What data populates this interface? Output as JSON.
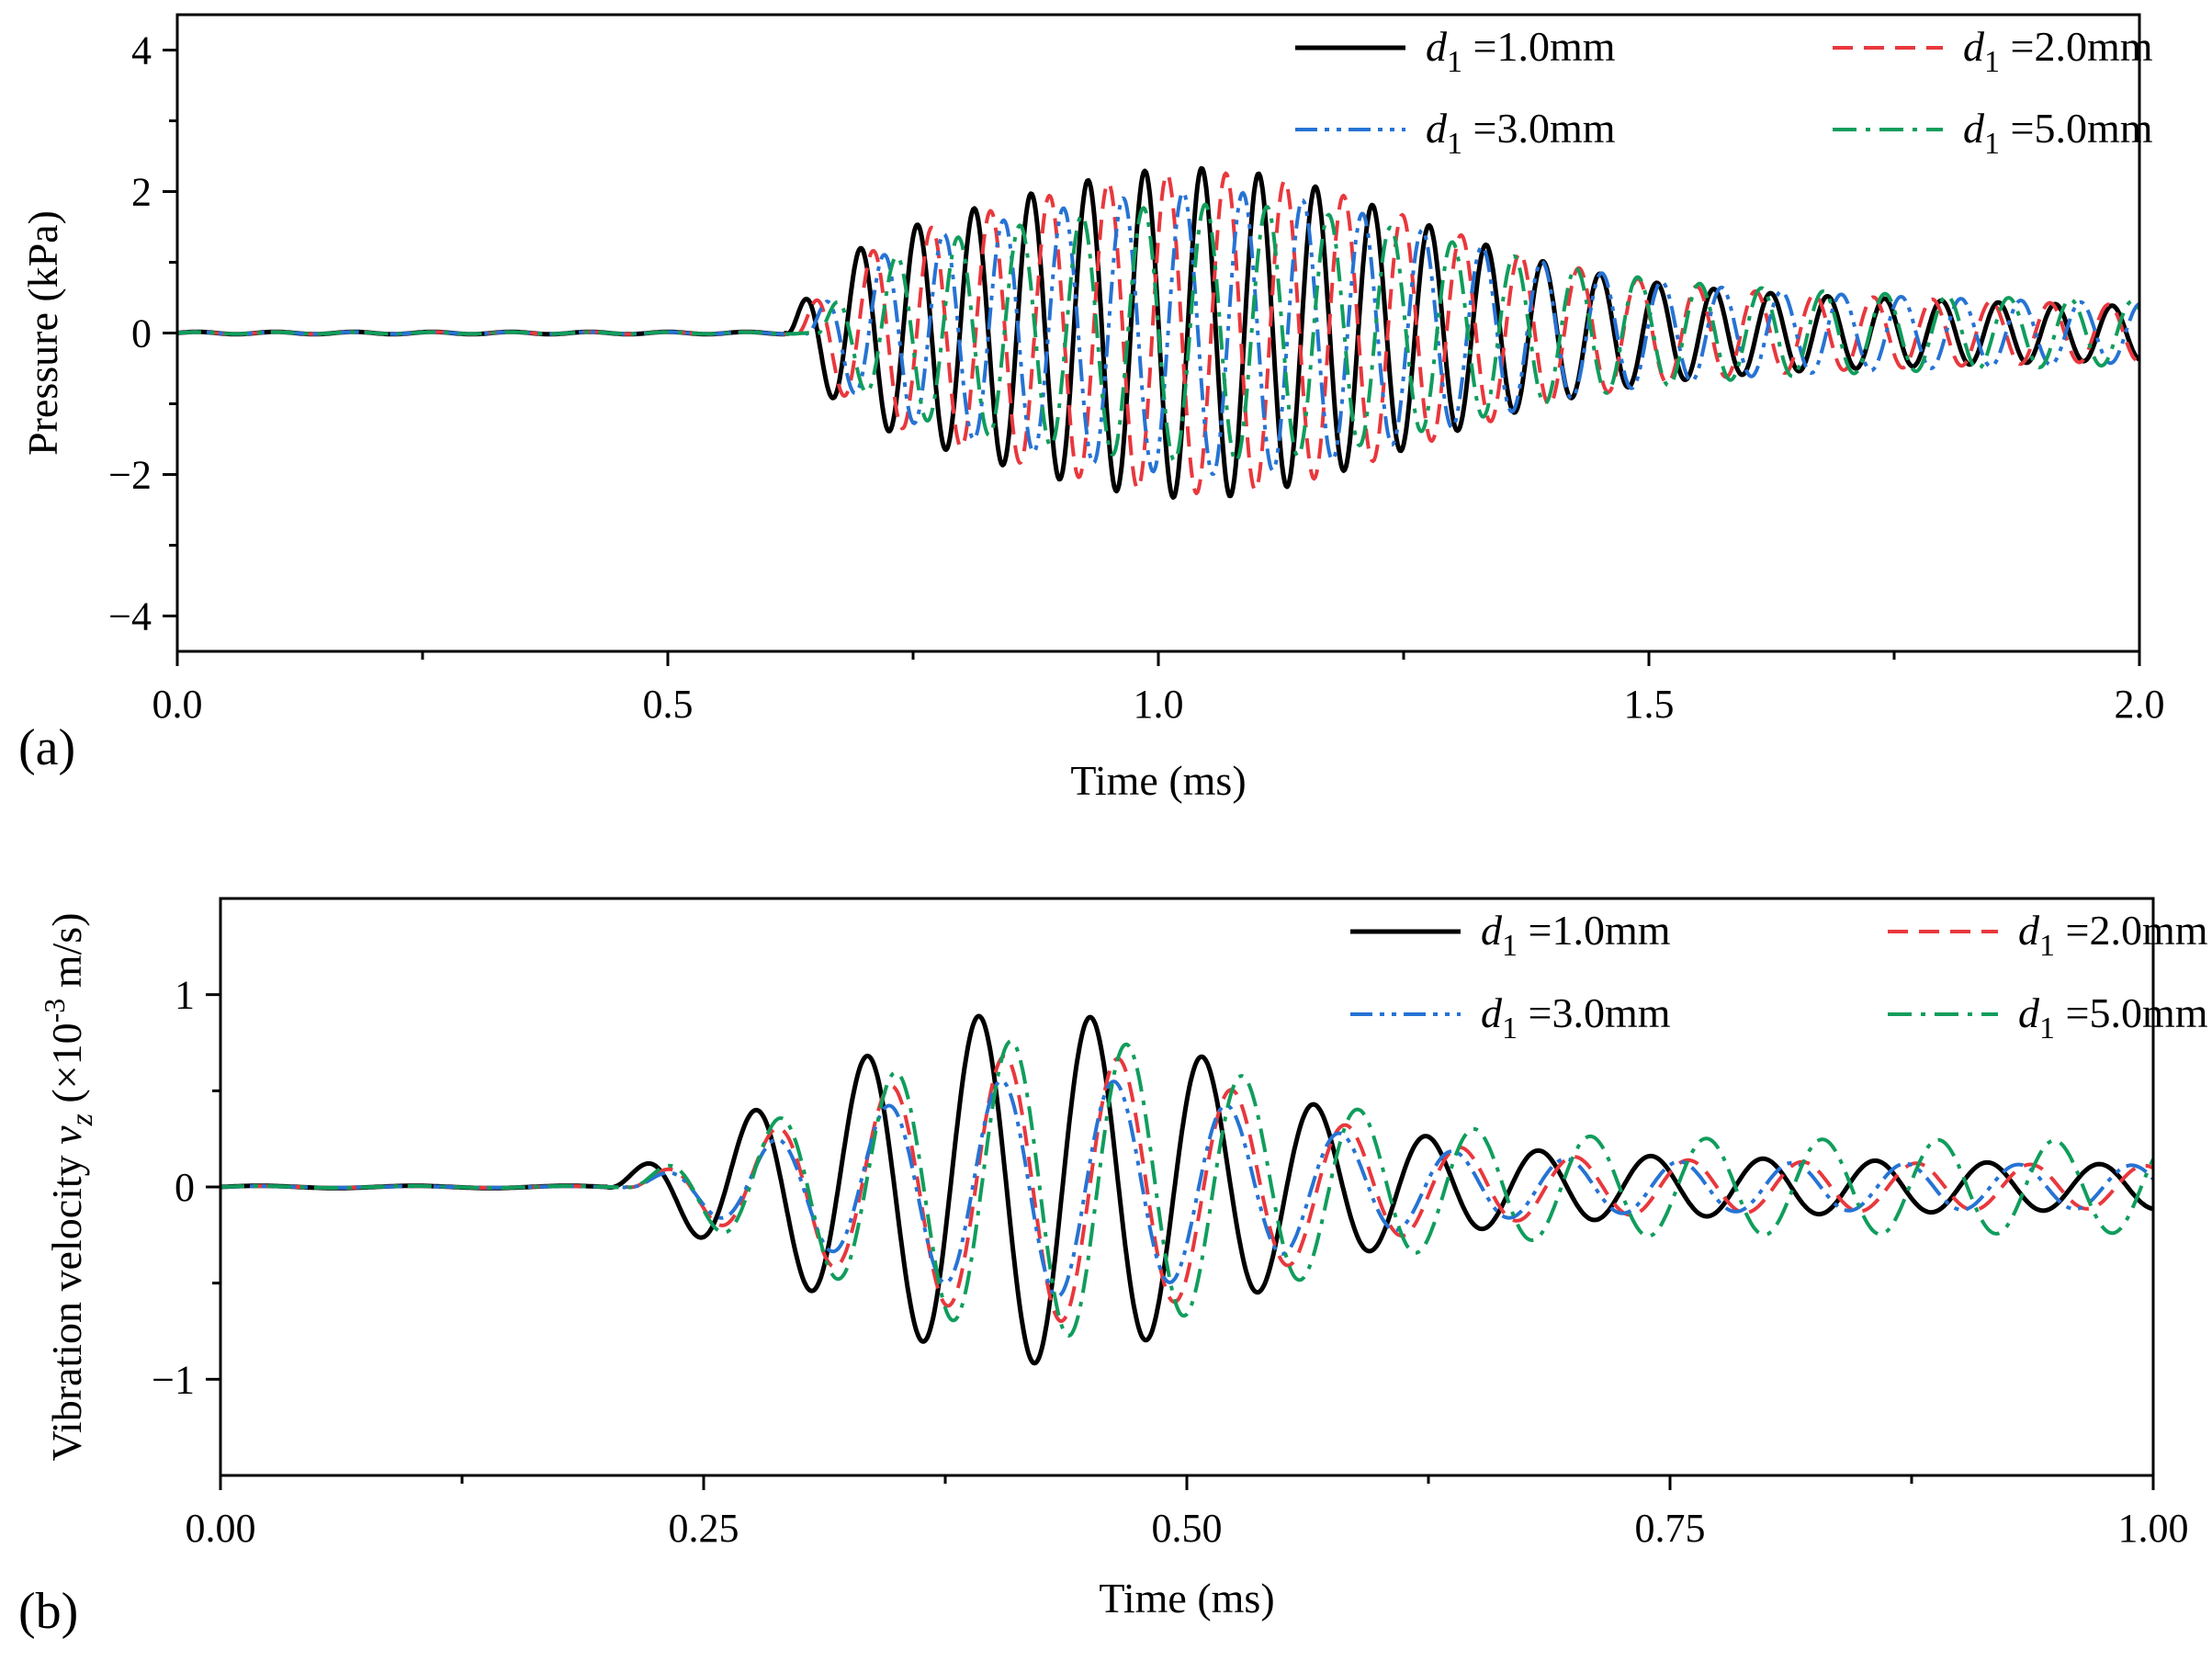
{
  "chart_data": [
    {
      "type": "line",
      "panel_label": "(a)",
      "xlabel": "Time (ms)",
      "ylabel": "Pressure (kPa)",
      "xlim": [
        0,
        2.0
      ],
      "ylim": [
        -4.5,
        4.5
      ],
      "xticks": [
        0,
        0.5,
        1.0,
        1.5,
        2.0
      ],
      "xtick_labels": [
        "0.0",
        "0.5",
        "1.0",
        "1.5",
        "2.0"
      ],
      "yticks": [
        -4,
        -2,
        0,
        2,
        4
      ],
      "ytick_labels": [
        "−4",
        "−2",
        "0",
        "2",
        "4"
      ],
      "legend_position": "top-right",
      "series": [
        {
          "name": "d1 =1.0mm",
          "var": "d",
          "sub": "1",
          "suffix": " =1.0mm",
          "color": "#000000",
          "dash": "solid",
          "width": 5,
          "onset": 0.62,
          "amp": 2.8,
          "period": 0.058,
          "decay": 1.9,
          "tail": 0.5
        },
        {
          "name": "d1 =2.0mm",
          "var": "d",
          "sub": "1",
          "suffix": " =2.0mm",
          "color": "#e8383d",
          "dash": "dash",
          "width": 4,
          "onset": 0.63,
          "amp": 2.7,
          "period": 0.06,
          "decay": 1.8,
          "tail": 0.5
        },
        {
          "name": "d1 =3.0mm",
          "var": "d",
          "sub": "1",
          "suffix": " =3.0mm",
          "color": "#2673d4",
          "dash": "dashdotdot",
          "width": 4,
          "onset": 0.64,
          "amp": 2.4,
          "period": 0.061,
          "decay": 1.7,
          "tail": 0.55
        },
        {
          "name": "d1 =5.0mm",
          "var": "d",
          "sub": "1",
          "suffix": " =5.0mm",
          "color": "#109d5c",
          "dash": "dashdot",
          "width": 4,
          "onset": 0.65,
          "amp": 2.2,
          "period": 0.063,
          "decay": 1.6,
          "tail": 0.6
        }
      ]
    },
    {
      "type": "line",
      "panel_label": "(b)",
      "xlabel": "Time (ms)",
      "ylabel_prefix": "Vibration velocity ",
      "ylabel_var": "v",
      "ylabel_sub": "z",
      "ylabel_unit_open": " (×10",
      "ylabel_exp": "-3",
      "ylabel_unit_close": " m/s)",
      "xlim": [
        0,
        1.0
      ],
      "ylim": [
        -1.5,
        1.5
      ],
      "xticks": [
        0,
        0.25,
        0.5,
        0.75,
        1.0
      ],
      "xtick_labels": [
        "0.00",
        "0.25",
        "0.50",
        "0.75",
        "1.00"
      ],
      "yticks": [
        -1,
        0,
        1
      ],
      "ytick_labels": [
        "−1",
        "0",
        "1"
      ],
      "legend_position": "top-right",
      "series": [
        {
          "name": "d1 =1.0mm",
          "var": "d",
          "sub": "1",
          "suffix": " =1.0mm",
          "color": "#000000",
          "dash": "solid",
          "width": 5,
          "onset": 0.2,
          "amp": 1.0,
          "period": 0.058,
          "decay": 1.2,
          "tail": 0.3
        },
        {
          "name": "d1 =2.0mm",
          "var": "d",
          "sub": "1",
          "suffix": " =2.0mm",
          "color": "#e8383d",
          "dash": "dash",
          "width": 4,
          "onset": 0.21,
          "amp": 0.75,
          "period": 0.059,
          "decay": 0.9,
          "tail": 0.3
        },
        {
          "name": "d1 =3.0mm",
          "var": "d",
          "sub": "1",
          "suffix": " =3.0mm",
          "color": "#2673d4",
          "dash": "dashdotdot",
          "width": 4,
          "onset": 0.21,
          "amp": 0.6,
          "period": 0.0585,
          "decay": 0.6,
          "tail": 0.3
        },
        {
          "name": "d1 =5.0mm",
          "var": "d",
          "sub": "1",
          "suffix": " =5.0mm",
          "color": "#109d5c",
          "dash": "dashdot",
          "width": 4,
          "onset": 0.21,
          "amp": 0.8,
          "period": 0.06,
          "decay": 0.2,
          "tail": 0.35
        }
      ]
    }
  ]
}
